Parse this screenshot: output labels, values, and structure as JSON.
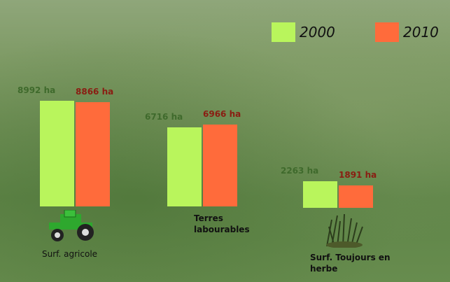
{
  "chart_data": {
    "type": "bar",
    "categories": [
      "Surf. agricole",
      "Terres labourables",
      "Surf. Toujours en herbe"
    ],
    "series": [
      {
        "name": "2000",
        "color": "#b9f55c",
        "label_color": "#3f6a2c",
        "values": [
          8992,
          6716,
          2263
        ],
        "value_labels": [
          "8992 ha",
          "6716 ha",
          "2263 ha"
        ]
      },
      {
        "name": "2010",
        "color": "#ff6b3b",
        "label_color": "#8a1d12",
        "values": [
          8866,
          6966,
          1891
        ],
        "value_labels": [
          "8866 ha",
          "6966 ha",
          "1891 ha"
        ]
      }
    ],
    "legend": "top-right"
  }
}
